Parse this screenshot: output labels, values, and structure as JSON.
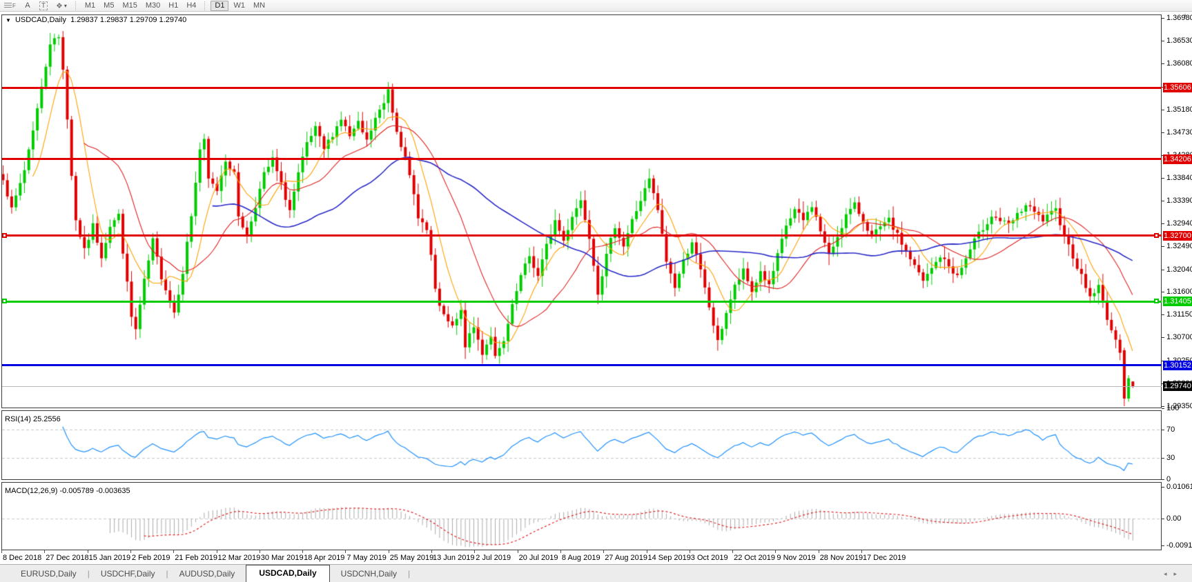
{
  "toolbar": {
    "tools": [
      {
        "name": "fibonacci-tool",
        "label": "F"
      },
      {
        "name": "text-label-tool",
        "label": "A"
      },
      {
        "name": "text-tool",
        "label": "T"
      },
      {
        "name": "shapes-tool",
        "label": "❖"
      }
    ],
    "timeframes": [
      "M1",
      "M5",
      "M15",
      "M30",
      "H1",
      "H4",
      "D1",
      "W1",
      "MN"
    ],
    "active_timeframe": "D1"
  },
  "chart": {
    "title_symbol": "USDCAD,Daily",
    "title_ohlc": "1.29837 1.29837 1.29709 1.29740"
  },
  "rsi_panel": {
    "label": "RSI(14) 25.2556"
  },
  "macd_panel": {
    "label": "MACD(12,26,9) -0.005789 -0.003635"
  },
  "tabs": {
    "items": [
      "EURUSD,Daily",
      "USDCHF,Daily",
      "AUDUSD,Daily",
      "USDCAD,Daily",
      "USDCNH,Daily"
    ],
    "active": "USDCAD,Daily"
  },
  "chart_data": {
    "type": "candlestick",
    "symbol": "USDCAD",
    "timeframe": "Daily",
    "last_candle_display": {
      "open": "1.29837",
      "high": "1.29837",
      "low": "1.29709",
      "close": "1.29740"
    },
    "n": 265,
    "seed": 7,
    "wiggle": 0.0012,
    "wick": 0.0019,
    "candle_colors": {
      "up": "#00CC00",
      "down": "#E00000"
    },
    "price_path_anchors": [
      [
        0,
        1.3385
      ],
      [
        2,
        1.332
      ],
      [
        5,
        1.34
      ],
      [
        9,
        1.356
      ],
      [
        11,
        1.365
      ],
      [
        13,
        1.366
      ],
      [
        14,
        1.36
      ],
      [
        15,
        1.35
      ],
      [
        16,
        1.339
      ],
      [
        17,
        1.33
      ],
      [
        19,
        1.324
      ],
      [
        21,
        1.329
      ],
      [
        23,
        1.323
      ],
      [
        25,
        1.329
      ],
      [
        27,
        1.331
      ],
      [
        28,
        1.324
      ],
      [
        30,
        1.311
      ],
      [
        31,
        1.3085
      ],
      [
        33,
        1.318
      ],
      [
        35,
        1.326
      ],
      [
        37,
        1.319
      ],
      [
        40,
        1.312
      ],
      [
        42,
        1.32
      ],
      [
        44,
        1.331
      ],
      [
        46,
        1.344
      ],
      [
        47,
        1.3455
      ],
      [
        48,
        1.338
      ],
      [
        50,
        1.336
      ],
      [
        52,
        1.342
      ],
      [
        54,
        1.339
      ],
      [
        55,
        1.331
      ],
      [
        57,
        1.327
      ],
      [
        59,
        1.333
      ],
      [
        61,
        1.339
      ],
      [
        63,
        1.342
      ],
      [
        65,
        1.337
      ],
      [
        67,
        1.332
      ],
      [
        69,
        1.339
      ],
      [
        71,
        1.345
      ],
      [
        73,
        1.348
      ],
      [
        75,
        1.344
      ],
      [
        77,
        1.347
      ],
      [
        79,
        1.35
      ],
      [
        81,
        1.3465
      ],
      [
        83,
        1.349
      ],
      [
        85,
        1.3455
      ],
      [
        87,
        1.35
      ],
      [
        89,
        1.353
      ],
      [
        90,
        1.356
      ],
      [
        91,
        1.3515
      ],
      [
        92,
        1.348
      ],
      [
        94,
        1.342
      ],
      [
        96,
        1.335
      ],
      [
        97,
        1.331
      ],
      [
        99,
        1.328
      ],
      [
        100,
        1.323
      ],
      [
        101,
        1.316
      ],
      [
        103,
        1.311
      ],
      [
        105,
        1.309
      ],
      [
        107,
        1.312
      ],
      [
        108,
        1.3055
      ],
      [
        110,
        1.309
      ],
      [
        112,
        1.304
      ],
      [
        114,
        1.3075
      ],
      [
        115,
        1.303
      ],
      [
        117,
        1.306
      ],
      [
        119,
        1.313
      ],
      [
        121,
        1.319
      ],
      [
        123,
        1.323
      ],
      [
        125,
        1.319
      ],
      [
        127,
        1.325
      ],
      [
        129,
        1.33
      ],
      [
        131,
        1.326
      ],
      [
        133,
        1.331
      ],
      [
        135,
        1.334
      ],
      [
        137,
        1.327
      ],
      [
        139,
        1.316
      ],
      [
        141,
        1.323
      ],
      [
        143,
        1.329
      ],
      [
        145,
        1.325
      ],
      [
        147,
        1.33
      ],
      [
        149,
        1.334
      ],
      [
        151,
        1.338
      ],
      [
        153,
        1.332
      ],
      [
        155,
        1.322
      ],
      [
        157,
        1.317
      ],
      [
        159,
        1.322
      ],
      [
        161,
        1.326
      ],
      [
        163,
        1.32
      ],
      [
        165,
        1.313
      ],
      [
        167,
        1.306
      ],
      [
        169,
        1.312
      ],
      [
        171,
        1.317
      ],
      [
        173,
        1.32
      ],
      [
        175,
        1.316
      ],
      [
        177,
        1.32
      ],
      [
        179,
        1.317
      ],
      [
        181,
        1.323
      ],
      [
        183,
        1.329
      ],
      [
        185,
        1.332
      ],
      [
        187,
        1.33
      ],
      [
        189,
        1.333
      ],
      [
        191,
        1.328
      ],
      [
        193,
        1.323
      ],
      [
        195,
        1.327
      ],
      [
        197,
        1.331
      ],
      [
        199,
        1.333
      ],
      [
        203,
        1.327
      ],
      [
        207,
        1.33
      ],
      [
        211,
        1.324
      ],
      [
        215,
        1.318
      ],
      [
        219,
        1.323
      ],
      [
        223,
        1.319
      ],
      [
        227,
        1.326
      ],
      [
        231,
        1.331
      ],
      [
        235,
        1.329
      ],
      [
        239,
        1.333
      ],
      [
        243,
        1.33
      ],
      [
        246,
        1.332
      ],
      [
        249,
        1.325
      ],
      [
        252,
        1.319
      ],
      [
        254,
        1.315
      ],
      [
        256,
        1.317
      ],
      [
        258,
        1.311
      ],
      [
        260,
        1.306
      ],
      [
        261,
        1.3045
      ],
      [
        262,
        1.295
      ],
      [
        263,
        1.299
      ],
      [
        264,
        1.2974
      ]
    ],
    "final_candles": [
      {
        "o": 1.3045,
        "h": 1.305,
        "l": 1.2935,
        "c": 1.295
      },
      {
        "o": 1.295,
        "h": 1.2996,
        "l": 1.2944,
        "c": 1.299
      },
      {
        "o": 1.29837,
        "h": 1.29837,
        "l": 1.29709,
        "c": 1.2974
      }
    ],
    "price_axis": {
      "ticks": [
        "1.36980",
        "1.36530",
        "1.36080",
        "1.35630",
        "1.35180",
        "1.34730",
        "1.34280",
        "1.33840",
        "1.33390",
        "1.32940",
        "1.32490",
        "1.32040",
        "1.31600",
        "1.31150",
        "1.30700",
        "1.30250",
        "1.29800",
        "1.29350"
      ]
    },
    "x_labels": [
      "8 Dec 2018",
      "27 Dec 2018",
      "15 Jan 2019",
      "2 Feb 2019",
      "21 Feb 2019",
      "12 Mar 2019",
      "30 Mar 2019",
      "18 Apr 2019",
      "7 May 2019",
      "25 May 2019",
      "13 Jun 2019",
      "2 Jul 2019",
      "20 Jul 2019",
      "8 Aug 2019",
      "27 Aug 2019",
      "14 Sep 2019",
      "3 Oct 2019",
      "22 Oct 2019",
      "9 Nov 2019",
      "28 Nov 2019",
      "17 Dec 2019"
    ],
    "levels": [
      {
        "price": 1.35606,
        "label": "1.35606",
        "color": "#E00000",
        "line_width": 3,
        "end_markers": false,
        "kind": "resistance"
      },
      {
        "price": 1.34206,
        "label": "1.34206",
        "color": "#E00000",
        "line_width": 3,
        "end_markers": false,
        "kind": "resistance"
      },
      {
        "price": 1.327,
        "label": "1.32700",
        "color": "#E00000",
        "line_width": 3,
        "end_markers": true,
        "kind": "resistance"
      },
      {
        "price": 1.31405,
        "label": "1.31405",
        "color": "#00CC00",
        "line_width": 3,
        "end_markers": true,
        "kind": "support"
      },
      {
        "price": 1.30152,
        "label": "1.30152",
        "color": "#0000E0",
        "line_width": 3,
        "end_markers": false,
        "kind": "support"
      },
      {
        "price": 1.2974,
        "label": "1.29740",
        "color": "#000000",
        "line_color": "#B8B8B8",
        "line_width": 1,
        "end_markers": false,
        "kind": "current-price"
      }
    ],
    "moving_averages": [
      {
        "period": 8,
        "color": "#FFA000"
      },
      {
        "period": 20,
        "color": "#E02020"
      },
      {
        "period": 50,
        "color": "#2828C8"
      }
    ],
    "rsi": {
      "period": 14,
      "display_value": "25.2556",
      "levels": [
        70,
        30
      ],
      "axis_ticks": [
        "100",
        "70",
        "30",
        "0"
      ],
      "color": "#1E90FF"
    },
    "macd": {
      "fast": 12,
      "slow": 26,
      "signal": 9,
      "display_values": "-0.005789 -0.003635",
      "axis_ticks": [
        "0.010615",
        "0.00",
        "-0.009181"
      ],
      "histogram_color": "#ABABAB",
      "signal_color": "#E02020"
    }
  }
}
